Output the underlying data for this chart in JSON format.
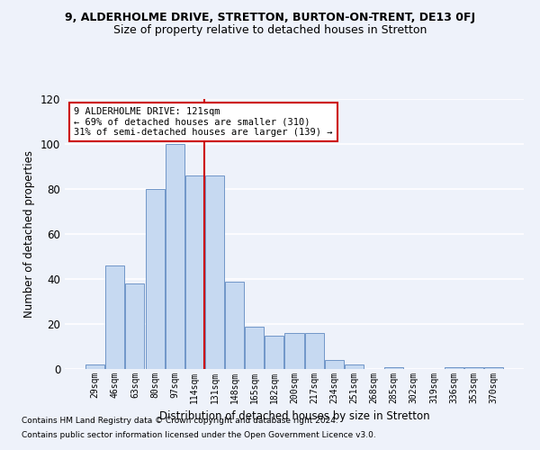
{
  "title": "9, ALDERHOLME DRIVE, STRETTON, BURTON-ON-TRENT, DE13 0FJ",
  "subtitle": "Size of property relative to detached houses in Stretton",
  "xlabel": "Distribution of detached houses by size in Stretton",
  "ylabel": "Number of detached properties",
  "bar_labels": [
    "29sqm",
    "46sqm",
    "63sqm",
    "80sqm",
    "97sqm",
    "114sqm",
    "131sqm",
    "148sqm",
    "165sqm",
    "182sqm",
    "200sqm",
    "217sqm",
    "234sqm",
    "251sqm",
    "268sqm",
    "285sqm",
    "302sqm",
    "319sqm",
    "336sqm",
    "353sqm",
    "370sqm"
  ],
  "bar_values": [
    2,
    46,
    38,
    80,
    100,
    86,
    86,
    39,
    19,
    15,
    16,
    16,
    4,
    2,
    0,
    1,
    0,
    0,
    1,
    1,
    1
  ],
  "bar_color": "#c6d9f1",
  "bar_edge_color": "#7096c8",
  "vline_color": "#cc0000",
  "ylim": [
    0,
    120
  ],
  "yticks": [
    0,
    20,
    40,
    60,
    80,
    100,
    120
  ],
  "annotation_text": "9 ALDERHOLME DRIVE: 121sqm\n← 69% of detached houses are smaller (310)\n31% of semi-detached houses are larger (139) →",
  "annotation_box_color": "#ffffff",
  "annotation_box_edge": "#cc0000",
  "footer1": "Contains HM Land Registry data © Crown copyright and database right 2024.",
  "footer2": "Contains public sector information licensed under the Open Government Licence v3.0.",
  "bg_color": "#eef2fa",
  "grid_color": "#ffffff",
  "title_fontsize": 9,
  "subtitle_fontsize": 9,
  "ylabel_fontsize": 8.5,
  "xlabel_fontsize": 8.5
}
